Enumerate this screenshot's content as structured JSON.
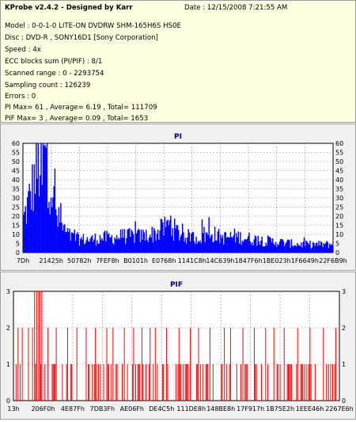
{
  "info": {
    "title": "KProbe v2.4.2 - Designed by Karr",
    "date": "Date : 12/15/2008 7:21:55 AM",
    "model": "Model : 0-0-1-0 LITE-ON DVDRW SHM-165H6S HS0E",
    "disc": "Disc : DVD-R , SONY16D1 [Sony Corporation]",
    "speed": "Speed : 4x",
    "ecc": "ECC blocks sum (PI/PIF) : 8/1",
    "scanned": "Scanned range : 0 - 2293754",
    "sampling": "Sampling count : 126239",
    "errors": "Errors : 0",
    "pi_summary": "PI Max= 61 , Average= 6.19 , Total= 111709",
    "pif_summary": "PIF Max= 3 , Average= 0.09 , Total= 1653"
  },
  "colors": {
    "pi_series": "#0000ff",
    "pif_series": "#ff0000",
    "title": "#000080",
    "plot_bg": "#ffffff"
  },
  "chart_data": [
    {
      "type": "area",
      "title": "PI",
      "ylim": [
        0,
        60
      ],
      "yticks": [
        0,
        5,
        10,
        15,
        20,
        25,
        30,
        35,
        40,
        45,
        50,
        55,
        60
      ],
      "xticks": [
        "7Dh",
        "21425h",
        "50782h",
        "7FEF8h",
        "B0101h",
        "E0768h",
        "1141C8h",
        "14C639h",
        "1847F6h",
        "1BE023h",
        "1F6649h",
        "22F6B9h"
      ],
      "grid": true,
      "x_samples": 316,
      "profile_points": [
        [
          0,
          20
        ],
        [
          4,
          28
        ],
        [
          8,
          37
        ],
        [
          12,
          46
        ],
        [
          16,
          52
        ],
        [
          19,
          57
        ],
        [
          22,
          55
        ],
        [
          25,
          52
        ],
        [
          28,
          43
        ],
        [
          31,
          30
        ],
        [
          35,
          20
        ],
        [
          40,
          15
        ],
        [
          45,
          11
        ],
        [
          50,
          9
        ],
        [
          58,
          8
        ],
        [
          70,
          8
        ],
        [
          80,
          9
        ],
        [
          90,
          9
        ],
        [
          100,
          10
        ],
        [
          110,
          10
        ],
        [
          120,
          10
        ],
        [
          130,
          11
        ],
        [
          140,
          13
        ],
        [
          147,
          17
        ],
        [
          152,
          15
        ],
        [
          158,
          12
        ],
        [
          165,
          10
        ],
        [
          175,
          9
        ],
        [
          185,
          10
        ],
        [
          192,
          12
        ],
        [
          198,
          10
        ],
        [
          205,
          9
        ],
        [
          215,
          10
        ],
        [
          225,
          9
        ],
        [
          235,
          8
        ],
        [
          250,
          7
        ],
        [
          265,
          6
        ],
        [
          280,
          5
        ],
        [
          295,
          5
        ],
        [
          305,
          5
        ],
        [
          315,
          5
        ]
      ],
      "peak": 61,
      "average": 6.19
    },
    {
      "type": "bar",
      "title": "PIF",
      "ylim": [
        0,
        3
      ],
      "yticks": [
        0,
        1,
        2,
        3
      ],
      "xticks": [
        "13h",
        "206F0h",
        "4E87Fh",
        "7DB3Fh",
        "AE06Fh",
        "DE4C5h",
        "111DE8h",
        "148BE8h",
        "17F917h",
        "1B75E2h",
        "1EEE46h",
        "2267E6h"
      ],
      "grid": true,
      "x_samples": 316,
      "max": 3,
      "average": 0.09,
      "threes": [
        20,
        22,
        24,
        25,
        27
      ],
      "twos": [
        4,
        8,
        14,
        18,
        33,
        41,
        52,
        61,
        70,
        79,
        90,
        96,
        107,
        116,
        124,
        132,
        137,
        148,
        160,
        171,
        179,
        190,
        204,
        210,
        222,
        233,
        244,
        252,
        262,
        275,
        287,
        300,
        312
      ]
    }
  ]
}
